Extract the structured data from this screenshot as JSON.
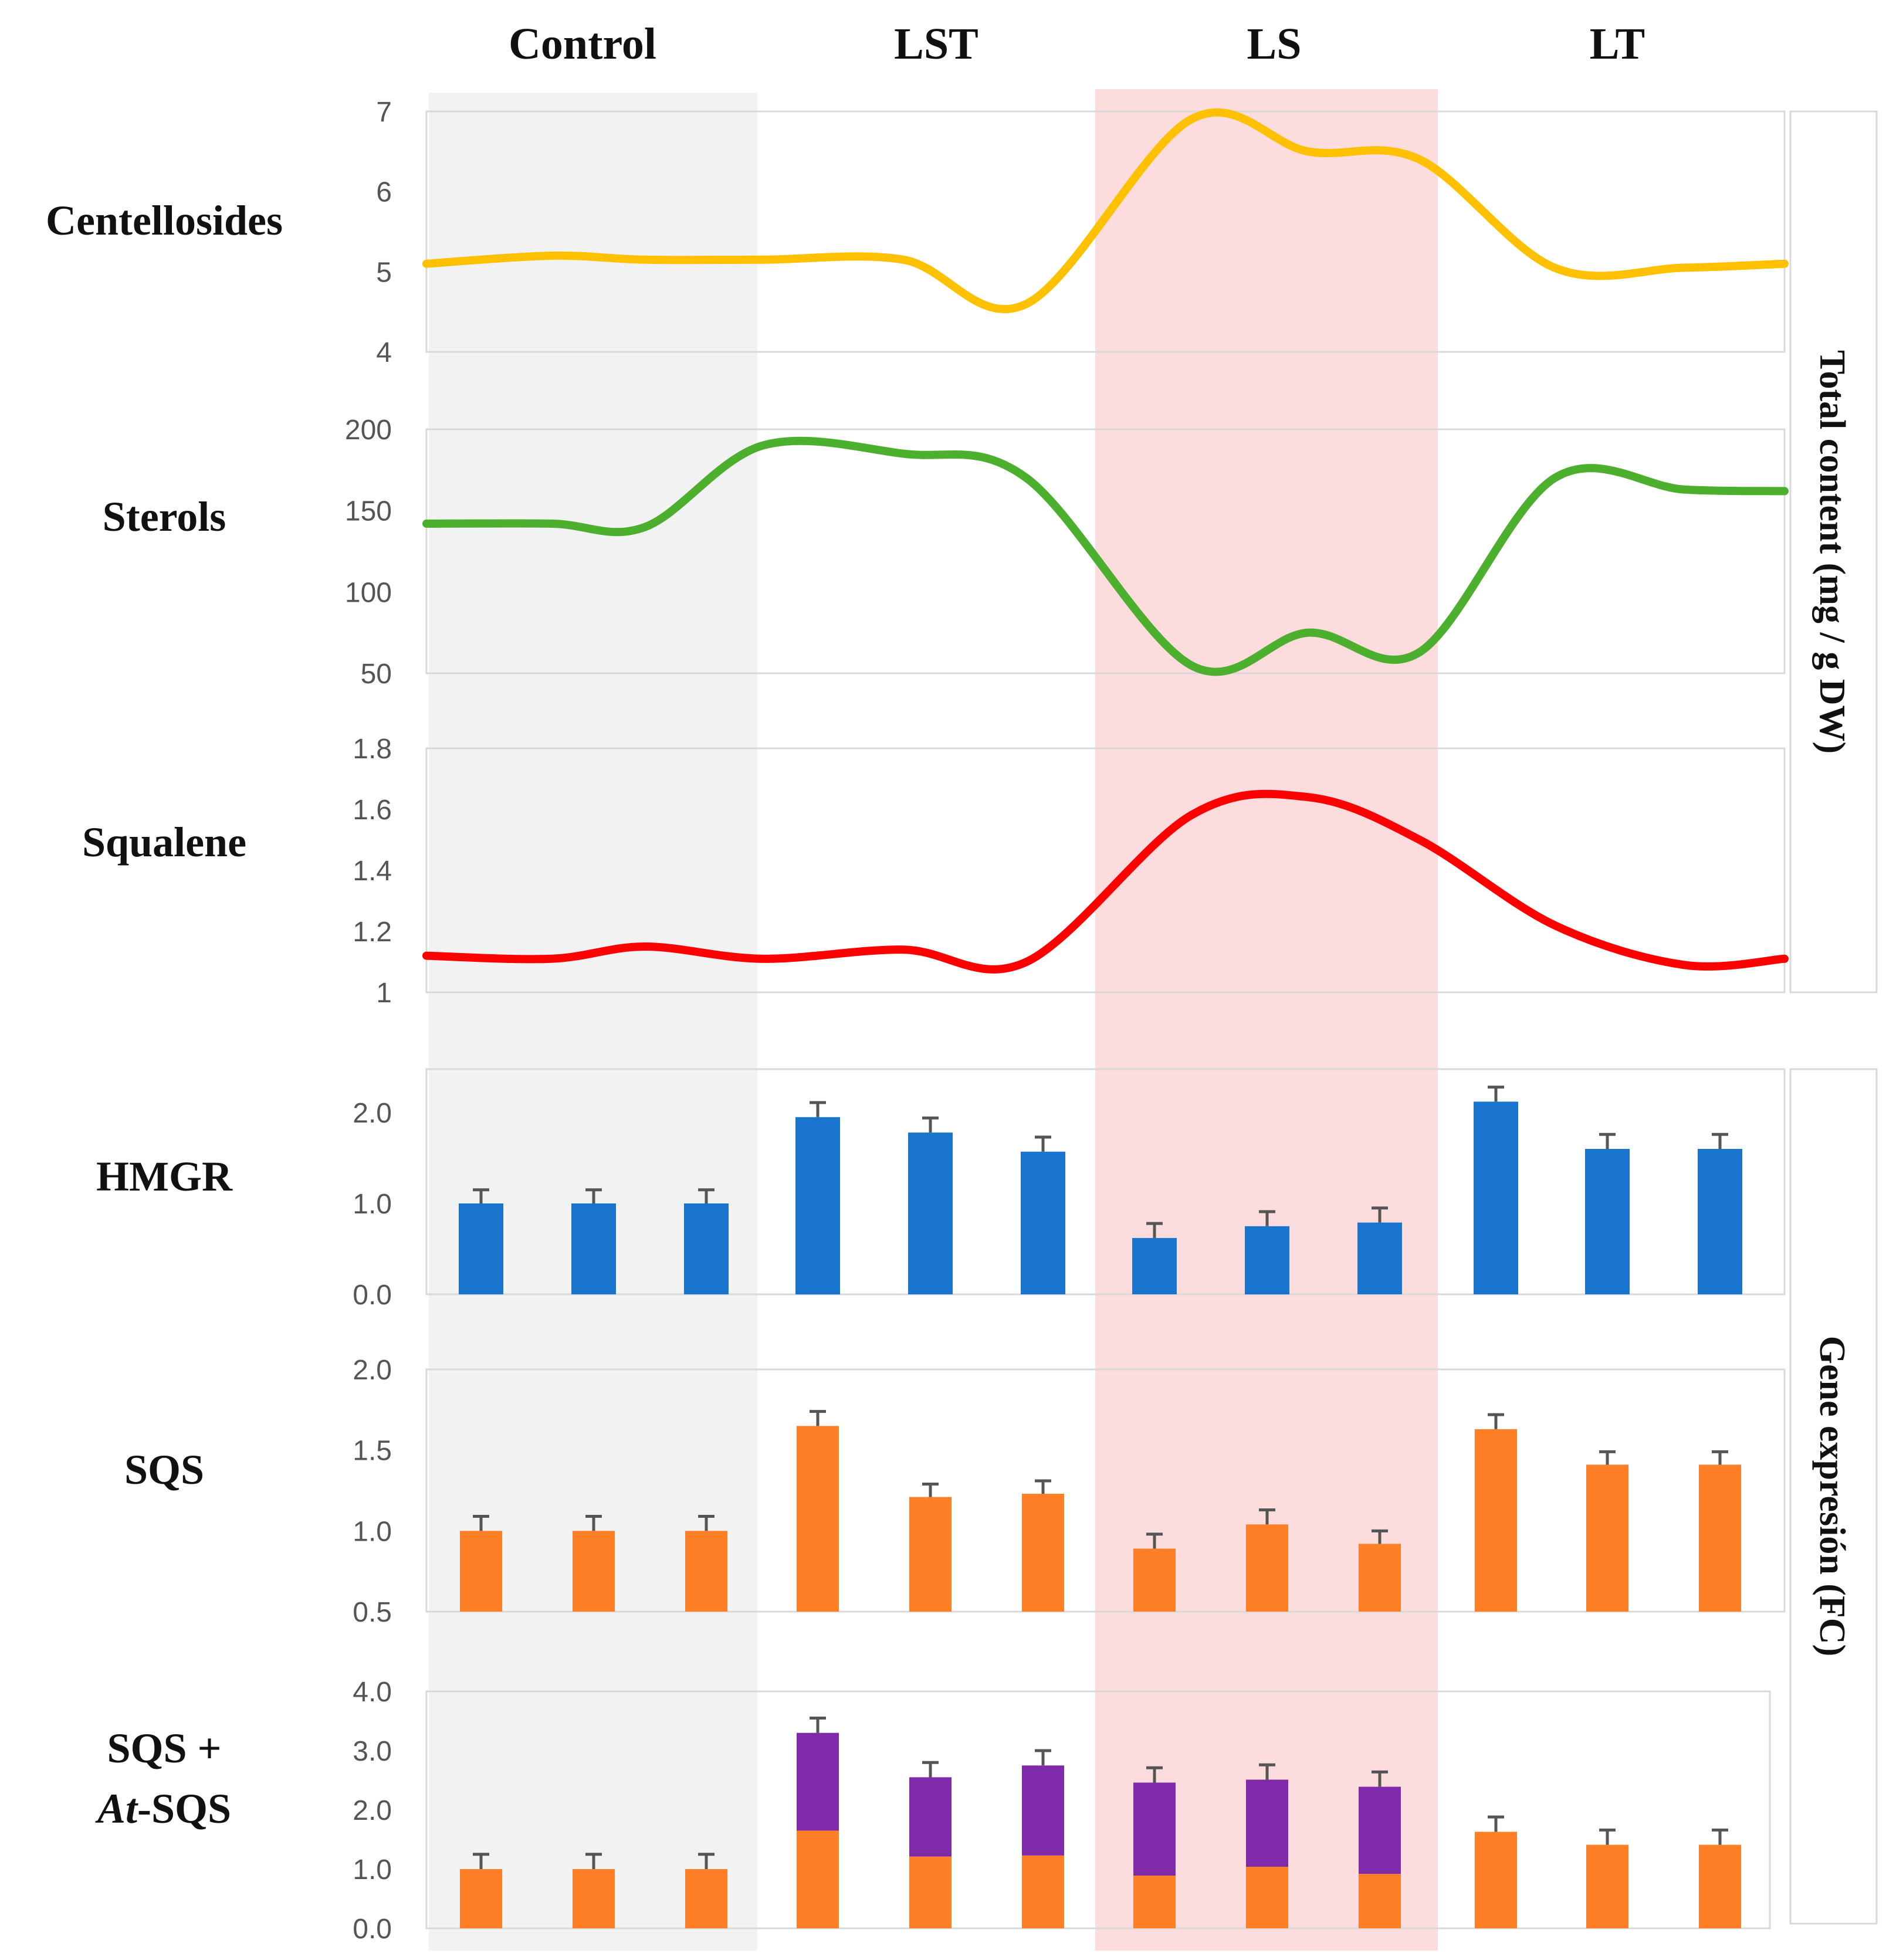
{
  "chart_data": {
    "type": "line+bar",
    "groups": [
      "Control",
      "LST",
      "LS",
      "LT"
    ],
    "shading": {
      "Control": "#f2f2f2",
      "LS": "#fcdcdc"
    },
    "side_labels": {
      "top": "Total content (mg / g DW)",
      "bottom": "Gene expresión (FC)"
    },
    "line_panels": [
      {
        "label": "Centellosides",
        "color": "#ffc000",
        "ylim": [
          4,
          7
        ],
        "yticks": [
          "7",
          "6",
          "5",
          "4"
        ],
        "ytick_values": [
          7,
          6,
          5,
          4
        ],
        "values": [
          5.1,
          5.2,
          5.15,
          5.15,
          5.15,
          4.6,
          6.9,
          6.5,
          6.4,
          5.05,
          5.05,
          5.1
        ]
      },
      {
        "label": "Sterols",
        "color": "#4caf2e",
        "ylim": [
          50,
          200
        ],
        "yticks": [
          "200",
          "150",
          "100",
          "50"
        ],
        "ytick_values": [
          200,
          150,
          100,
          50
        ],
        "values": [
          142,
          142,
          140,
          190,
          185,
          170,
          55,
          75,
          63,
          170,
          163,
          162
        ]
      },
      {
        "label": "Squalene",
        "color": "#ff0000",
        "ylim": [
          1,
          1.8
        ],
        "yticks": [
          "1.8",
          "1.6",
          "1.4",
          "1.2",
          "1"
        ],
        "ytick_values": [
          1.8,
          1.6,
          1.4,
          1.2,
          1.0
        ],
        "values": [
          1.12,
          1.11,
          1.15,
          1.11,
          1.14,
          1.1,
          1.58,
          1.64,
          1.5,
          1.22,
          1.09,
          1.11
        ]
      }
    ],
    "bar_panels": [
      {
        "label": "HMGR",
        "color": "#1874cd",
        "ylim": [
          0,
          2.5
        ],
        "yticks": [
          "2.0",
          "1.0",
          "0.0"
        ],
        "ytick_values": [
          2.0,
          1.0,
          0.0
        ],
        "values": [
          1.0,
          1.0,
          1.0,
          1.95,
          1.78,
          1.57,
          0.62,
          0.75,
          0.79,
          2.12,
          1.6,
          1.6
        ],
        "errors": [
          0.15,
          0.15,
          0.15,
          0.16,
          0.16,
          0.16,
          0.16,
          0.16,
          0.16,
          0.16,
          0.16,
          0.16
        ]
      },
      {
        "label": "SQS",
        "color": "#ff7f27",
        "ylim": [
          0.5,
          2.0
        ],
        "yticks": [
          "2.0",
          "1.5",
          "1.0",
          "0.5"
        ],
        "ytick_values": [
          2.0,
          1.5,
          1.0,
          0.5
        ],
        "values": [
          1.0,
          1.0,
          1.0,
          1.65,
          1.21,
          1.23,
          0.89,
          1.04,
          0.92,
          1.63,
          1.41,
          1.41
        ],
        "errors": [
          0.09,
          0.09,
          0.09,
          0.09,
          0.08,
          0.08,
          0.09,
          0.09,
          0.08,
          0.09,
          0.08,
          0.08
        ]
      },
      {
        "label_line1": "SQS +",
        "label_line2_italic": "At",
        "label_line2_rest": "-SQS",
        "series": [
          {
            "name": "SQS",
            "color": "#ff7f27",
            "values": [
              1.0,
              1.0,
              1.0,
              1.65,
              1.21,
              1.23,
              0.89,
              1.04,
              0.92,
              1.63,
              1.41,
              1.41
            ]
          },
          {
            "name": "At-SQS",
            "color": "#7f2aa8",
            "values": [
              0,
              0,
              0,
              1.65,
              1.34,
              1.52,
              1.57,
              1.47,
              1.47,
              0,
              0,
              0
            ]
          }
        ],
        "ylim": [
          0,
          4.0
        ],
        "yticks": [
          "4.0",
          "3.0",
          "2.0",
          "1.0",
          "0.0"
        ],
        "ytick_values": [
          4.0,
          3.0,
          2.0,
          1.0,
          0.0
        ],
        "errors": [
          0.25,
          0.25,
          0.25,
          0.25,
          0.25,
          0.25,
          0.25,
          0.25,
          0.25,
          0.25,
          0.25,
          0.25
        ]
      }
    ]
  }
}
